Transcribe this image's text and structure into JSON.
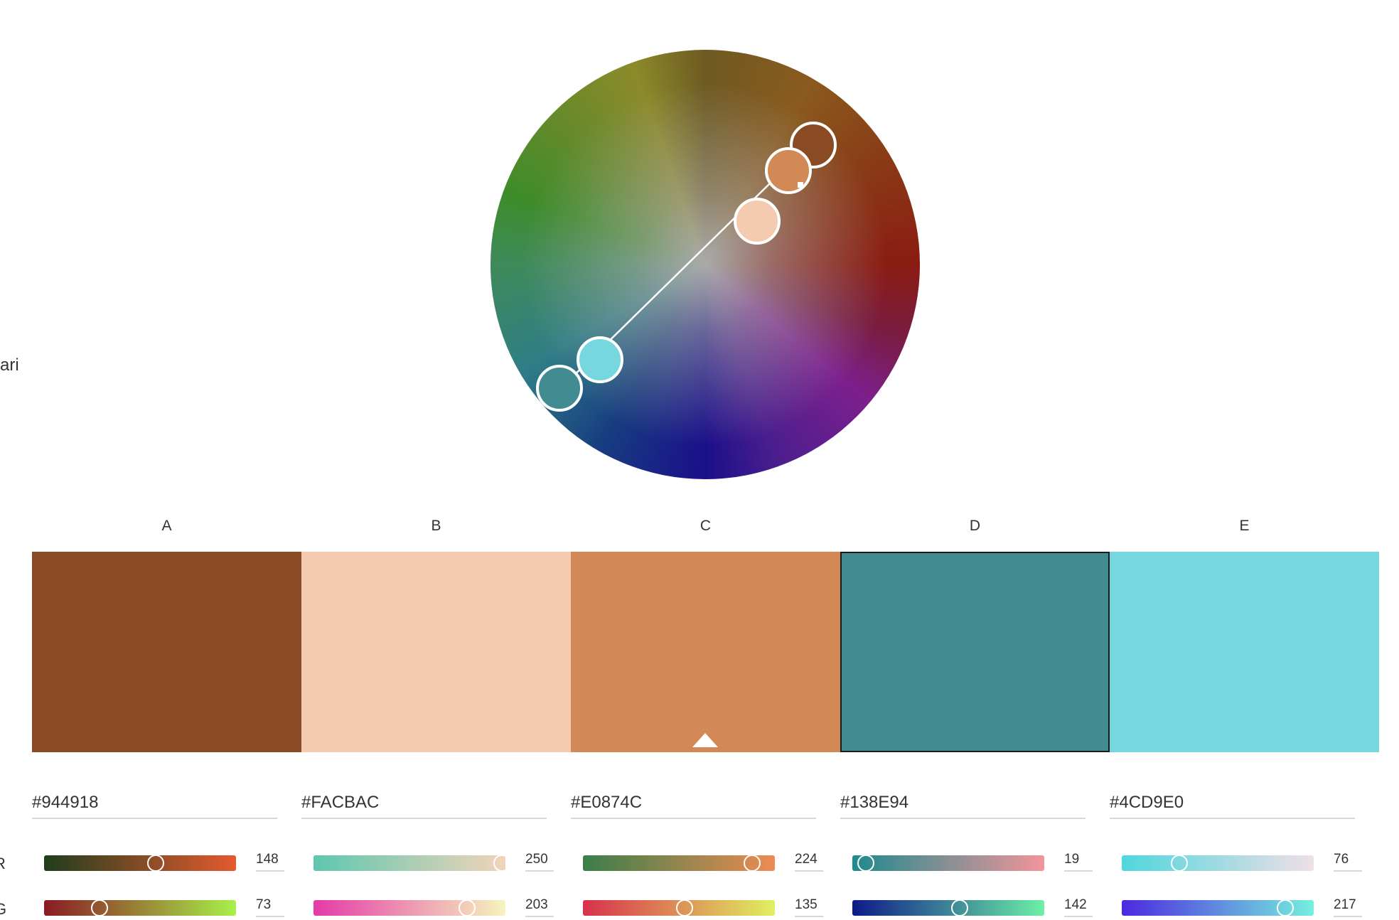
{
  "left_partial_label": "ari",
  "swatches": [
    {
      "letter": "A",
      "color": "#8a4b24",
      "hex": "#944918",
      "r": "148",
      "g": "73",
      "r_pos": 0.58,
      "g_pos": 0.29
    },
    {
      "letter": "B",
      "color": "#f4cbb1",
      "hex": "#FACBAC",
      "r": "250",
      "g": "203",
      "r_pos": 0.98,
      "g_pos": 0.8
    },
    {
      "letter": "C",
      "color": "#d38955",
      "hex": "#E0874C",
      "r": "224",
      "g": "135",
      "r_pos": 0.88,
      "g_pos": 0.53
    },
    {
      "letter": "D",
      "color": "#418b91",
      "hex": "#138E94",
      "r": "19",
      "g": "142",
      "r_pos": 0.07,
      "g_pos": 0.56
    },
    {
      "letter": "E",
      "color": "#76d7de",
      "hex": "#4CD9E0",
      "r": "76",
      "g": "217",
      "r_pos": 0.3,
      "g_pos": 0.85
    }
  ],
  "slider_gradients": {
    "r": [
      "linear-gradient(90deg,#203d1c,#e55a2f)",
      "linear-gradient(90deg,#5ec7b0,#f2d4b8)",
      "linear-gradient(90deg,#3b7e4a,#ec8c52)",
      "linear-gradient(90deg,#1e8a8e,#f2959a)",
      "linear-gradient(90deg,#4fd6dd,#f0dfe6)"
    ],
    "g": [
      "linear-gradient(90deg,#8a1a24,#a8f04a)",
      "linear-gradient(90deg,#e43aa8,#f6f4bc)",
      "linear-gradient(90deg,#d8304c,#e0f060)",
      "linear-gradient(90deg,#0e1a88,#6cf0a6)",
      "linear-gradient(90deg,#4c28e0,#74f0de)"
    ]
  },
  "channel_labels": {
    "r": "R",
    "g": "G"
  }
}
